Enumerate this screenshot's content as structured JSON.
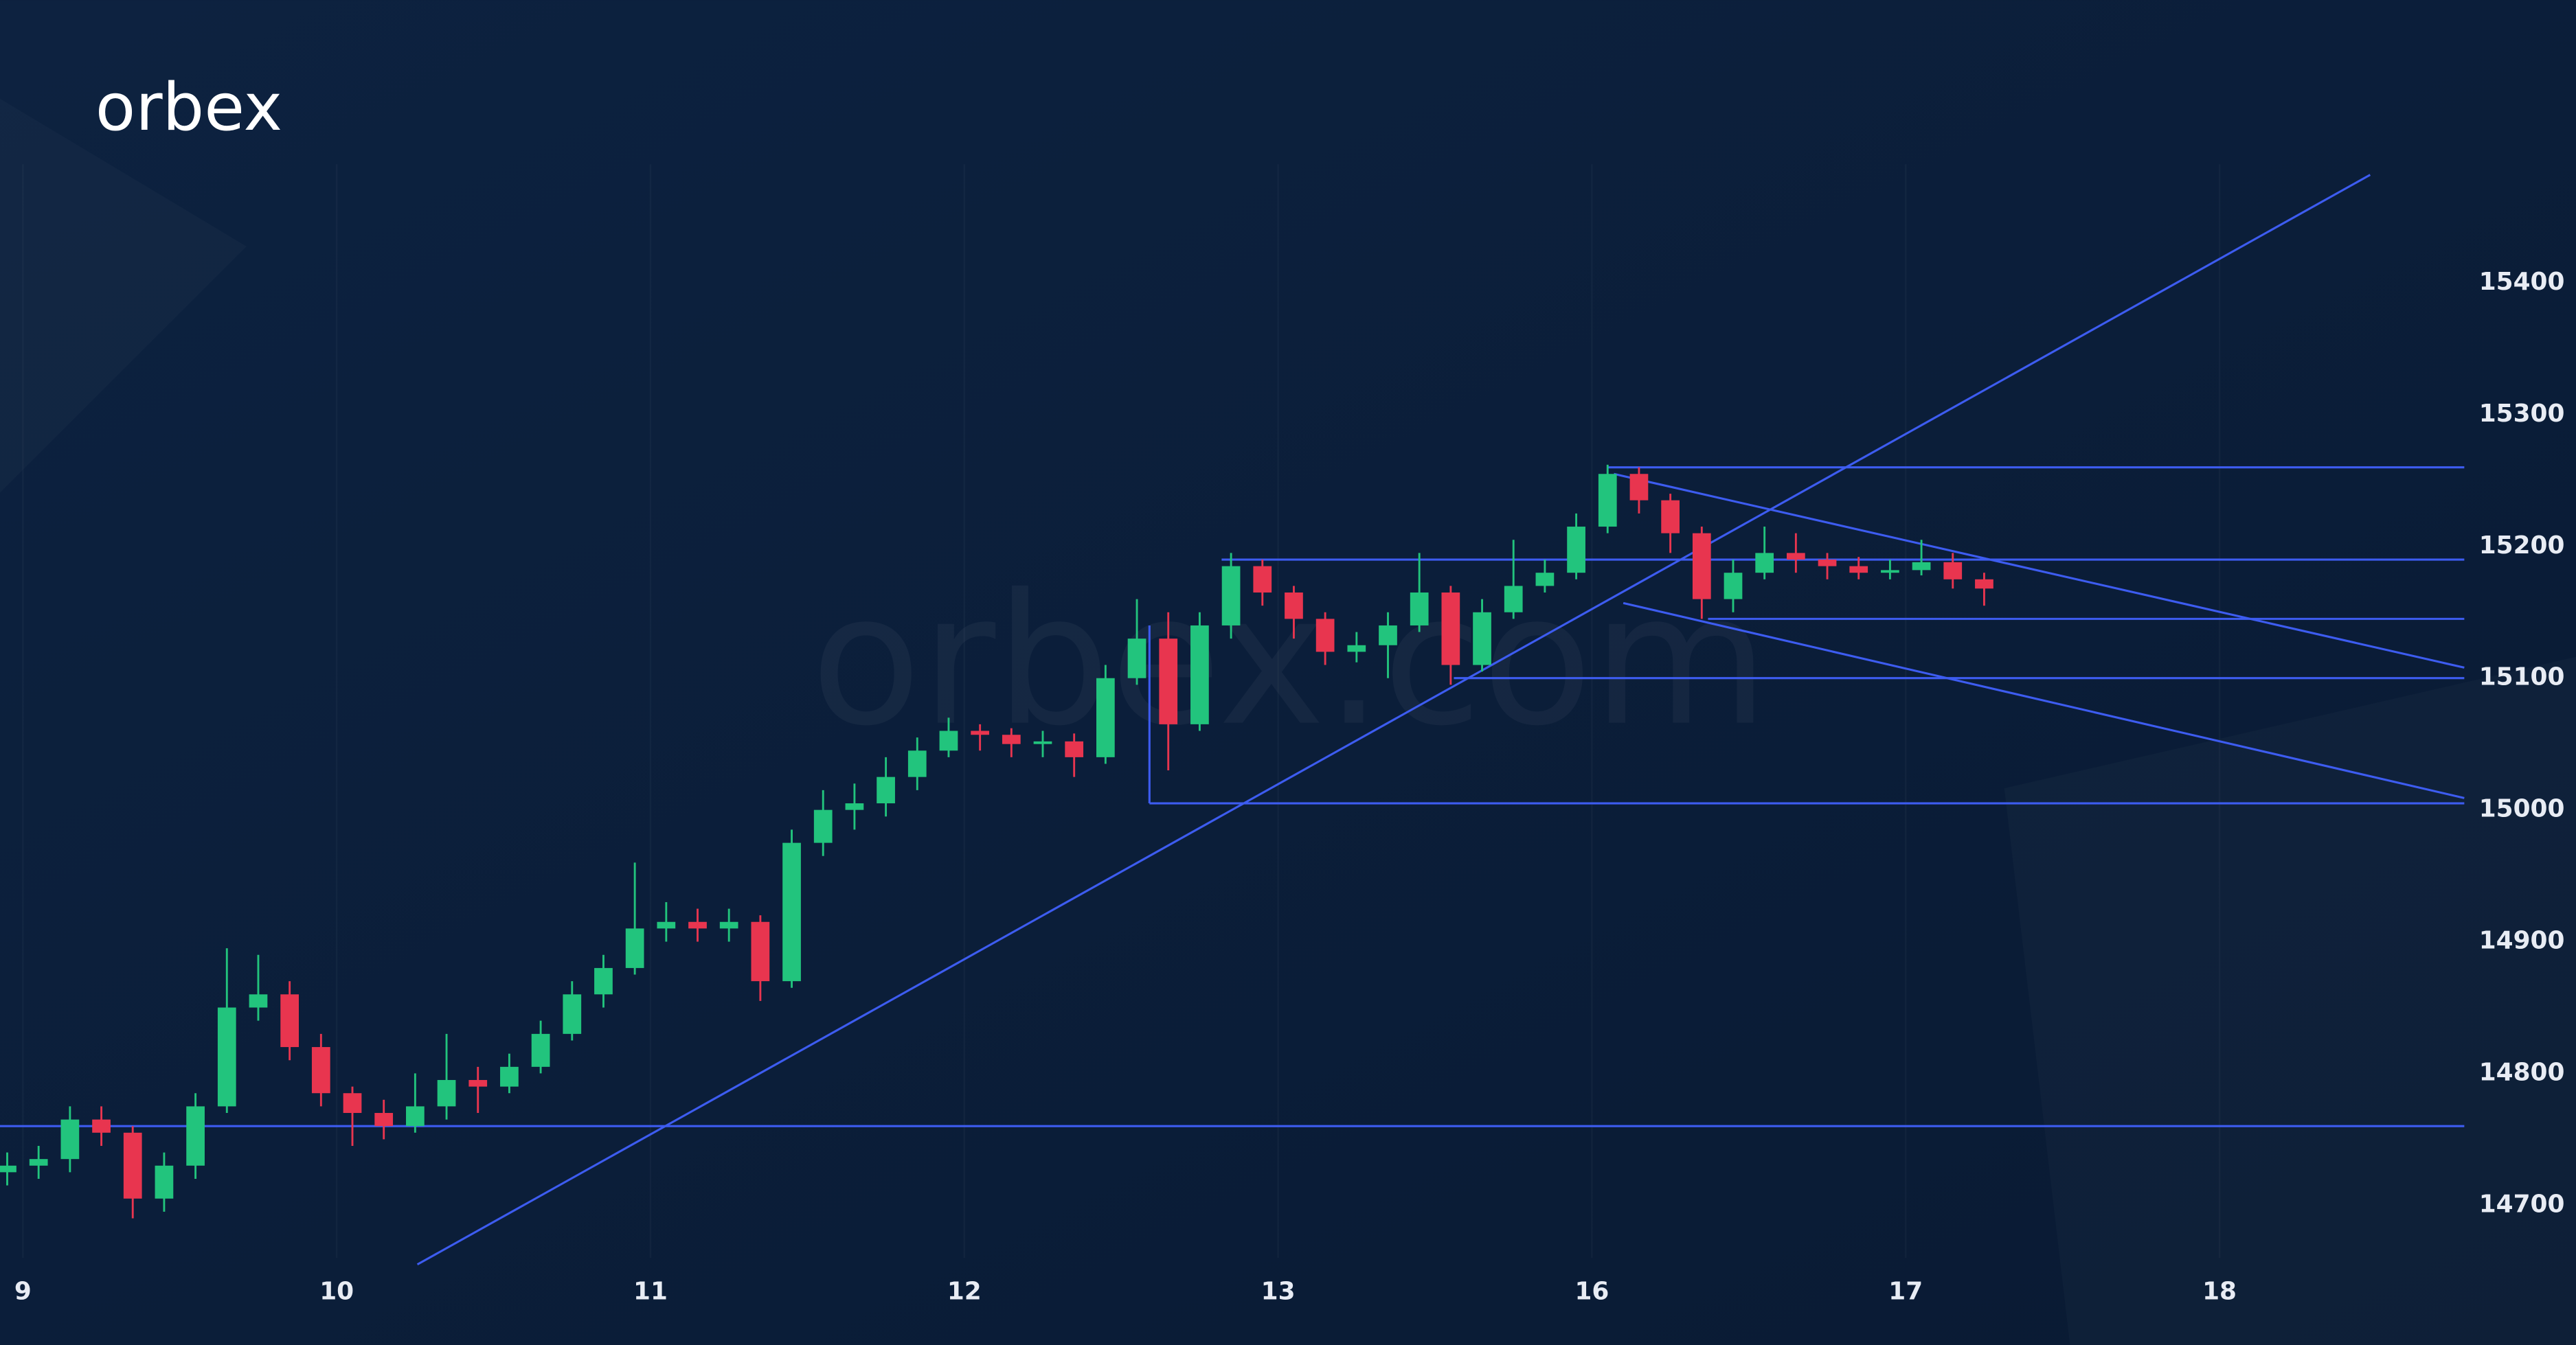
{
  "logo": "orbex",
  "watermark": "orbex.com",
  "chart_data": {
    "type": "candlestick",
    "up_color": "#22c47d",
    "down_color": "#e8354f",
    "line_color": "#3d5cf0",
    "xlim": [
      -0.073,
      7.78
    ],
    "ylim": [
      14660,
      15490
    ],
    "xticks": [
      {
        "value": 0,
        "label": "9"
      },
      {
        "value": 1,
        "label": "10"
      },
      {
        "value": 2,
        "label": "11"
      },
      {
        "value": 3,
        "label": "12"
      },
      {
        "value": 4,
        "label": "13"
      },
      {
        "value": 5,
        "label": "16"
      },
      {
        "value": 6,
        "label": "17"
      },
      {
        "value": 7,
        "label": "18"
      }
    ],
    "yticks": [
      14700,
      14800,
      14900,
      15000,
      15100,
      15200,
      15300,
      15400
    ],
    "x": [
      -0.05,
      0.05,
      0.15,
      0.25,
      0.35,
      0.45,
      0.55,
      0.65,
      0.75,
      0.85,
      0.95,
      1.05,
      1.15,
      1.25,
      1.35,
      1.45,
      1.55,
      1.65,
      1.75,
      1.85,
      1.95,
      2.05,
      2.15,
      2.25,
      2.35,
      2.45,
      2.55,
      2.65,
      2.75,
      2.85,
      2.95,
      3.05,
      3.15,
      3.25,
      3.35,
      3.45,
      3.55,
      3.65,
      3.75,
      3.85,
      3.95,
      4.05,
      4.15,
      4.25,
      4.35,
      4.45,
      4.55,
      4.65,
      4.75,
      4.85,
      4.95,
      5.05,
      5.15,
      5.25,
      5.35,
      5.45,
      5.55,
      5.65,
      5.75,
      5.85,
      5.95,
      6.05,
      6.15,
      6.25
    ],
    "open": [
      14725,
      14730,
      14735,
      14765,
      14755,
      14705,
      14730,
      14775,
      14850,
      14860,
      14820,
      14785,
      14770,
      14760,
      14775,
      14795,
      14790,
      14805,
      14830,
      14860,
      14880,
      14910,
      14915,
      14910,
      14915,
      14870,
      14975,
      15000,
      15005,
      15025,
      15045,
      15060,
      15057,
      15050,
      15052,
      15040,
      15100,
      15130,
      15065,
      15140,
      15185,
      15165,
      15145,
      15120,
      15125,
      15140,
      15165,
      15110,
      15150,
      15170,
      15180,
      15215,
      15255,
      15235,
      15210,
      15160,
      15180,
      15195,
      15190,
      15185,
      15180,
      15182,
      15188,
      15175
    ],
    "high": [
      14740,
      14745,
      14775,
      14775,
      14760,
      14740,
      14785,
      14895,
      14890,
      14870,
      14830,
      14790,
      14780,
      14800,
      14830,
      14805,
      14815,
      14840,
      14870,
      14890,
      14960,
      14930,
      14925,
      14925,
      14920,
      14985,
      15015,
      15020,
      15040,
      15055,
      15070,
      15065,
      15062,
      15060,
      15058,
      15110,
      15160,
      15150,
      15150,
      15195,
      15190,
      15170,
      15150,
      15135,
      15150,
      15195,
      15170,
      15160,
      15205,
      15190,
      15225,
      15262,
      15260,
      15240,
      15215,
      15190,
      15215,
      15210,
      15195,
      15192,
      15190,
      15205,
      15195,
      15180
    ],
    "low": [
      14715,
      14720,
      14725,
      14745,
      14690,
      14695,
      14720,
      14770,
      14840,
      14810,
      14775,
      14745,
      14750,
      14755,
      14765,
      14770,
      14785,
      14800,
      14825,
      14850,
      14875,
      14900,
      14900,
      14900,
      14855,
      14865,
      14965,
      14985,
      14995,
      15015,
      15040,
      15045,
      15040,
      15040,
      15025,
      15035,
      15095,
      15030,
      15060,
      15130,
      15155,
      15130,
      15110,
      15112,
      15100,
      15135,
      15095,
      15105,
      15145,
      15165,
      15175,
      15210,
      15225,
      15195,
      15145,
      15150,
      15175,
      15180,
      15175,
      15175,
      15175,
      15178,
      15168,
      15155
    ],
    "close": [
      14730,
      14735,
      14765,
      14755,
      14705,
      14730,
      14775,
      14850,
      14860,
      14820,
      14785,
      14770,
      14760,
      14775,
      14795,
      14790,
      14805,
      14830,
      14860,
      14880,
      14910,
      14915,
      14910,
      14915,
      14870,
      14975,
      15000,
      15005,
      15025,
      15045,
      15060,
      15057,
      15050,
      15052,
      15040,
      15100,
      15130,
      15065,
      15140,
      15185,
      15165,
      15145,
      15120,
      15125,
      15140,
      15165,
      15110,
      15150,
      15170,
      15180,
      15215,
      15255,
      15235,
      15210,
      15160,
      15180,
      15195,
      15190,
      15185,
      15180,
      15182,
      15188,
      15175,
      15168
    ],
    "lines": [
      {
        "x": [
          1.257,
          7.48
        ],
        "y": [
          14655,
          15482
        ]
      },
      {
        "x": [
          5.07,
          7.78
        ],
        "y": [
          15255,
          15108
        ]
      },
      {
        "x": [
          5.1,
          7.78
        ],
        "y": [
          15157,
          15009
        ]
      },
      {
        "x": [
          5.05,
          7.78
        ],
        "y": [
          15260,
          15260
        ]
      },
      {
        "x": [
          3.82,
          7.78
        ],
        "y": [
          15190,
          15190
        ]
      },
      {
        "x": [
          5.37,
          7.78
        ],
        "y": [
          15145,
          15145
        ]
      },
      {
        "x": [
          4.56,
          7.78
        ],
        "y": [
          15100,
          15100
        ]
      },
      {
        "x": [
          3.59,
          7.78
        ],
        "y": [
          15005,
          15005
        ]
      },
      {
        "x": [
          3.59,
          3.59
        ],
        "y": [
          15005,
          15140
        ]
      },
      {
        "x": [
          -0.073,
          7.78
        ],
        "y": [
          14760,
          14760
        ]
      }
    ]
  }
}
